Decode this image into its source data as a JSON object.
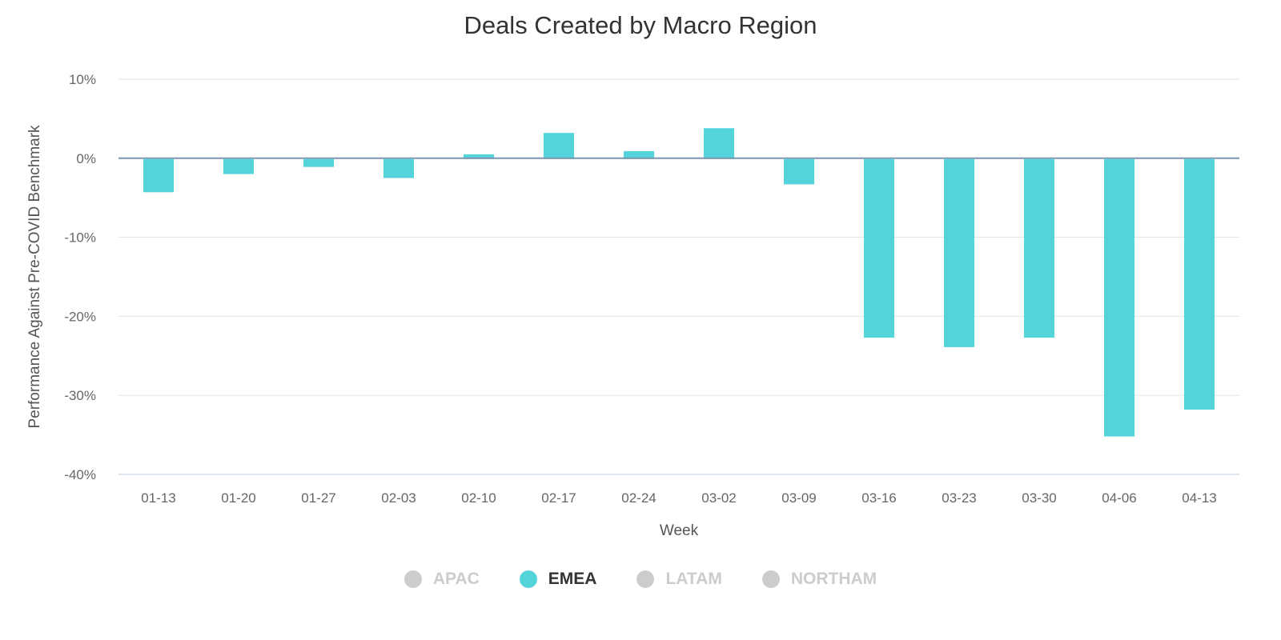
{
  "chart_data": {
    "type": "bar",
    "title": "Deals Created by Macro Region",
    "xlabel": "Week",
    "ylabel": "Performance Against Pre-COVID Benchmark",
    "ylim": [
      -40,
      10
    ],
    "yticks": [
      "10%",
      "0%",
      "-10%",
      "-20%",
      "-30%",
      "-40%"
    ],
    "ytick_values": [
      10,
      0,
      -10,
      -20,
      -30,
      -40
    ],
    "grid": true,
    "legend_placement": "bottom",
    "categories": [
      "01-13",
      "01-20",
      "01-27",
      "02-03",
      "02-10",
      "02-17",
      "02-24",
      "03-02",
      "03-09",
      "03-16",
      "03-23",
      "03-30",
      "04-06",
      "04-13"
    ],
    "series": [
      {
        "name": "EMEA",
        "color": "#53d3da",
        "values": [
          -4.3,
          -2.0,
          -1.1,
          -2.5,
          0.5,
          3.2,
          0.9,
          3.8,
          -3.3,
          -22.7,
          -23.9,
          -22.7,
          -35.2,
          -31.8
        ]
      }
    ],
    "legend": [
      {
        "name": "APAC",
        "active": false,
        "color": "#cccccc"
      },
      {
        "name": "EMEA",
        "active": true,
        "color": "#53d3da"
      },
      {
        "name": "LATAM",
        "active": false,
        "color": "#cccccc"
      },
      {
        "name": "NORTHAM",
        "active": false,
        "color": "#cccccc"
      }
    ]
  }
}
